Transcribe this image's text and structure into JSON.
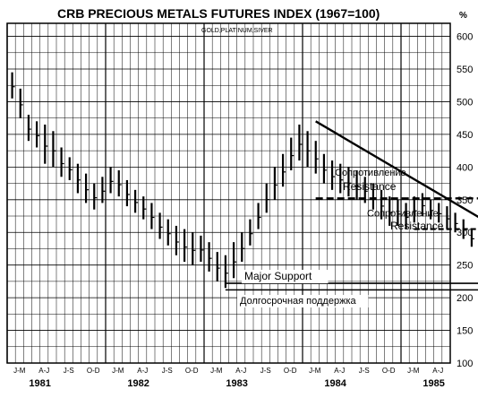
{
  "chart_data": {
    "type": "bar",
    "title": "CRB PRECIOUS METALS FUTURES INDEX (1967=100)",
    "subtitle": "GOLD,PLATINUM,SIVER",
    "y_unit_label": "%",
    "ylim": [
      100,
      620
    ],
    "y_ticks": [
      600,
      550,
      500,
      450,
      400,
      350,
      300,
      250,
      200,
      150,
      100
    ],
    "x_month_labels": [
      "J-M",
      "A-J",
      "J-S",
      "O-D",
      "J-M",
      "A-J",
      "J-S",
      "O-D",
      "J-M",
      "A-J",
      "J-S",
      "O-D",
      "J-M",
      "A-J",
      "J-S",
      "O-D",
      "J-M",
      "A-J"
    ],
    "x_year_labels": [
      "1981",
      "1982",
      "1983",
      "1984",
      "1985"
    ],
    "grid": true,
    "price_high_low": [
      [
        545,
        505
      ],
      [
        520,
        475
      ],
      [
        480,
        440
      ],
      [
        470,
        430
      ],
      [
        465,
        405
      ],
      [
        455,
        400
      ],
      [
        430,
        385
      ],
      [
        415,
        380
      ],
      [
        405,
        360
      ],
      [
        390,
        345
      ],
      [
        375,
        335
      ],
      [
        385,
        345
      ],
      [
        400,
        360
      ],
      [
        395,
        355
      ],
      [
        380,
        340
      ],
      [
        365,
        330
      ],
      [
        355,
        320
      ],
      [
        345,
        305
      ],
      [
        330,
        290
      ],
      [
        320,
        280
      ],
      [
        310,
        265
      ],
      [
        305,
        255
      ],
      [
        300,
        250
      ],
      [
        295,
        255
      ],
      [
        285,
        240
      ],
      [
        270,
        225
      ],
      [
        265,
        215
      ],
      [
        285,
        230
      ],
      [
        300,
        255
      ],
      [
        320,
        280
      ],
      [
        345,
        305
      ],
      [
        375,
        330
      ],
      [
        400,
        350
      ],
      [
        420,
        370
      ],
      [
        445,
        395
      ],
      [
        465,
        410
      ],
      [
        455,
        400
      ],
      [
        440,
        390
      ],
      [
        420,
        375
      ],
      [
        410,
        365
      ],
      [
        405,
        360
      ],
      [
        400,
        355
      ],
      [
        395,
        350
      ],
      [
        385,
        345
      ],
      [
        375,
        335
      ],
      [
        365,
        320
      ],
      [
        355,
        310
      ],
      [
        350,
        310
      ],
      [
        345,
        305
      ],
      [
        355,
        315
      ],
      [
        360,
        325
      ],
      [
        350,
        320
      ],
      [
        345,
        315
      ],
      [
        340,
        305
      ],
      [
        330,
        300
      ],
      [
        320,
        290
      ],
      [
        305,
        278
      ],
      [
        300,
        275
      ],
      [
        295,
        270
      ],
      [
        300,
        272
      ],
      [
        298,
        270
      ],
      [
        290,
        255
      ],
      [
        270,
        228
      ],
      [
        250,
        225
      ]
    ],
    "annotations": [
      {
        "text": "Сопротивление",
        "y": 392
      },
      {
        "text": "Resistance",
        "y": 370
      },
      {
        "text": "Сопротивление",
        "y": 330
      },
      {
        "text": "Resistance",
        "y": 310
      },
      {
        "text": "Major Support",
        "y": 233
      },
      {
        "text": "Долгосрочная поддержка",
        "y": 196
      }
    ],
    "lines": {
      "trendline": {
        "start": [
          37.6,
          470
        ],
        "end": [
          67.4,
          250
        ]
      },
      "resistance_1": {
        "level": 352,
        "from": 37.6,
        "to": 64.4
      },
      "resistance_2": {
        "level": 305,
        "from": 49.6,
        "to": 62.6
      },
      "major_support_1": {
        "level": 222,
        "from": 26.6,
        "to": 67.0
      },
      "major_support_2": {
        "level": 212,
        "from": 26.6,
        "to": 67.0
      }
    }
  }
}
